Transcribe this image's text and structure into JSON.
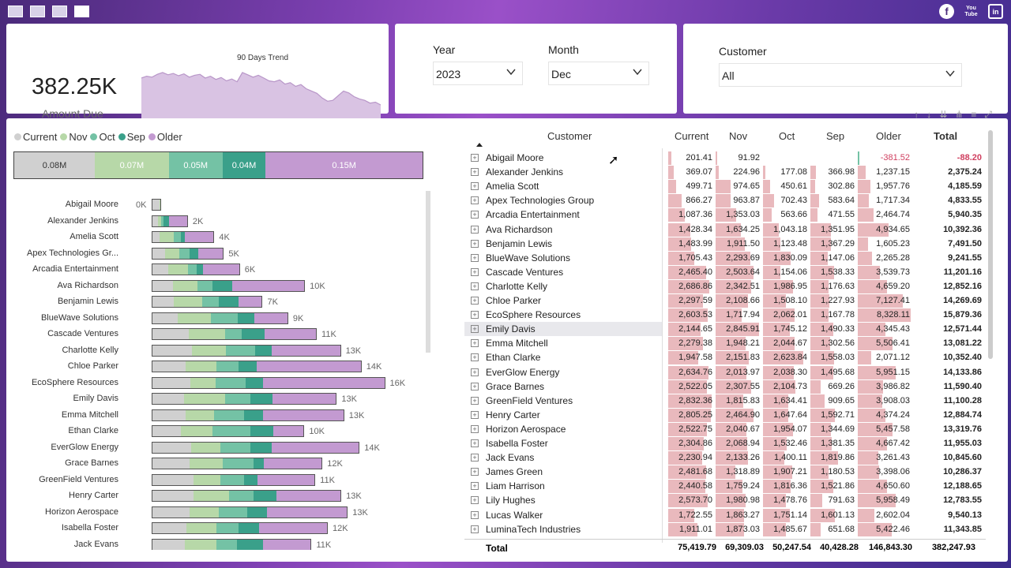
{
  "colors": {
    "current": "#d0d0d0",
    "nov": "#b7d8a8",
    "oct": "#74c2a5",
    "sep": "#3aa08a",
    "older": "#c39ad1",
    "cell_fill": "#e9b9bd",
    "negative": "#d04060"
  },
  "nav": {
    "pages": [
      "page-1",
      "page-2",
      "page-3",
      "page-4"
    ],
    "active_page": 3
  },
  "social": {
    "facebook": "f",
    "youtube_top": "You",
    "youtube_bottom": "Tube",
    "linkedin": "in"
  },
  "kpi": {
    "value": "382.25K",
    "label": "Amount Due",
    "trend_title": "90 Days Trend",
    "trend": [
      0.78,
      0.82,
      0.8,
      0.86,
      0.9,
      0.85,
      0.88,
      0.83,
      0.87,
      0.8,
      0.84,
      0.86,
      0.78,
      0.82,
      0.75,
      0.79,
      0.72,
      0.76,
      0.7,
      0.9,
      0.85,
      0.8,
      0.84,
      0.78,
      0.72,
      0.7,
      0.74,
      0.65,
      0.68,
      0.6,
      0.64,
      0.55,
      0.5,
      0.45,
      0.35,
      0.28,
      0.3,
      0.4,
      0.5,
      0.46,
      0.38,
      0.33,
      0.3,
      0.24,
      0.26,
      0.2
    ]
  },
  "slicers": {
    "year": {
      "label": "Year",
      "value": "2023"
    },
    "month": {
      "label": "Month",
      "value": "Dec"
    },
    "customer": {
      "label": "Customer",
      "value": "All"
    }
  },
  "legend": [
    {
      "key": "current",
      "label": "Current"
    },
    {
      "key": "nov",
      "label": "Nov"
    },
    {
      "key": "oct",
      "label": "Oct"
    },
    {
      "key": "sep",
      "label": "Sep"
    },
    {
      "key": "older",
      "label": "Older"
    }
  ],
  "summary_bar": [
    {
      "key": "current",
      "label": "0.08M",
      "value": 75419.79
    },
    {
      "key": "nov",
      "label": "0.07M",
      "value": 69309.03
    },
    {
      "key": "oct",
      "label": "0.05M",
      "value": 50247.54
    },
    {
      "key": "sep",
      "label": "0.04M",
      "value": 40428.28
    },
    {
      "key": "older",
      "label": "0.15M",
      "value": 146843.3
    }
  ],
  "bar_rows": [
    {
      "name": "Abigail Moore",
      "total_label": "0K",
      "values": [
        201.41,
        91.92,
        0,
        0,
        0
      ]
    },
    {
      "name": "Alexander Jenkins",
      "total_label": "2K",
      "values": [
        369.07,
        224.96,
        177.08,
        366.98,
        1237.15
      ]
    },
    {
      "name": "Amelia Scott",
      "total_label": "4K",
      "values": [
        499.71,
        974.65,
        450.61,
        302.86,
        1957.76
      ]
    },
    {
      "name": "Apex Technologies Gr...",
      "total_label": "5K",
      "values": [
        866.27,
        963.87,
        702.43,
        583.64,
        1717.34
      ]
    },
    {
      "name": "Arcadia Entertainment",
      "total_label": "6K",
      "values": [
        1087.36,
        1353.03,
        563.66,
        471.55,
        2464.74
      ]
    },
    {
      "name": "Ava Richardson",
      "total_label": "10K",
      "values": [
        1428.34,
        1634.25,
        1043.18,
        1351.95,
        4934.65
      ]
    },
    {
      "name": "Benjamin Lewis",
      "total_label": "7K",
      "values": [
        1483.99,
        1911.5,
        1123.48,
        1367.29,
        1605.23
      ]
    },
    {
      "name": "BlueWave Solutions",
      "total_label": "9K",
      "values": [
        1705.43,
        2293.69,
        1830.09,
        1147.06,
        2265.28
      ]
    },
    {
      "name": "Cascade Ventures",
      "total_label": "11K",
      "values": [
        2465.4,
        2503.64,
        1154.06,
        1538.33,
        3539.73
      ]
    },
    {
      "name": "Charlotte Kelly",
      "total_label": "13K",
      "values": [
        2686.86,
        2342.51,
        1986.95,
        1176.63,
        4659.2
      ]
    },
    {
      "name": "Chloe Parker",
      "total_label": "14K",
      "values": [
        2297.59,
        2108.66,
        1508.1,
        1227.93,
        7127.41
      ]
    },
    {
      "name": "EcoSphere Resources",
      "total_label": "16K",
      "values": [
        2603.53,
        1717.94,
        2062.01,
        1167.78,
        8328.11
      ]
    },
    {
      "name": "Emily Davis",
      "total_label": "13K",
      "values": [
        2144.65,
        2845.91,
        1745.12,
        1490.33,
        4345.43
      ]
    },
    {
      "name": "Emma Mitchell",
      "total_label": "13K",
      "values": [
        2279.38,
        1948.21,
        2044.67,
        1302.56,
        5506.41
      ]
    },
    {
      "name": "Ethan Clarke",
      "total_label": "10K",
      "values": [
        1947.58,
        2151.83,
        2623.84,
        1558.03,
        2071.12
      ]
    },
    {
      "name": "EverGlow Energy",
      "total_label": "14K",
      "values": [
        2634.76,
        2013.97,
        2038.3,
        1495.68,
        5951.15
      ]
    },
    {
      "name": "Grace Barnes",
      "total_label": "12K",
      "values": [
        2522.05,
        2307.55,
        2104.73,
        669.26,
        3986.82
      ]
    },
    {
      "name": "GreenField Ventures",
      "total_label": "11K",
      "values": [
        2832.36,
        1815.83,
        1634.41,
        909.65,
        3908.03
      ]
    },
    {
      "name": "Henry Carter",
      "total_label": "13K",
      "values": [
        2805.25,
        2464.9,
        1647.64,
        1592.71,
        4374.24
      ]
    },
    {
      "name": "Horizon Aerospace",
      "total_label": "13K",
      "values": [
        2522.75,
        2040.67,
        1954.07,
        1344.69,
        5457.58
      ]
    },
    {
      "name": "Isabella Foster",
      "total_label": "12K",
      "values": [
        2304.86,
        2068.94,
        1532.46,
        1381.35,
        4667.42
      ]
    },
    {
      "name": "Jack Evans",
      "total_label": "11K",
      "values": [
        2230.94,
        2133.26,
        1400.11,
        1819.86,
        3261.43
      ]
    }
  ],
  "matrix": {
    "headers": {
      "customer": "Customer",
      "current": "Current",
      "nov": "Nov",
      "oct": "Oct",
      "sep": "Sep",
      "older": "Older",
      "total": "Total"
    },
    "rows": [
      {
        "name": "Abigail Moore",
        "current": "201.41",
        "nov": "91.92",
        "oct": "",
        "sep": "",
        "older": "-381.52",
        "total": "-88.20",
        "v": [
          201.41,
          91.92,
          0,
          0,
          -381.52
        ]
      },
      {
        "name": "Alexander Jenkins",
        "current": "369.07",
        "nov": "224.96",
        "oct": "177.08",
        "sep": "366.98",
        "older": "1,237.15",
        "total": "2,375.24",
        "v": [
          369.07,
          224.96,
          177.08,
          366.98,
          1237.15
        ]
      },
      {
        "name": "Amelia Scott",
        "current": "499.71",
        "nov": "974.65",
        "oct": "450.61",
        "sep": "302.86",
        "older": "1,957.76",
        "total": "4,185.59",
        "v": [
          499.71,
          974.65,
          450.61,
          302.86,
          1957.76
        ]
      },
      {
        "name": "Apex Technologies Group",
        "current": "866.27",
        "nov": "963.87",
        "oct": "702.43",
        "sep": "583.64",
        "older": "1,717.34",
        "total": "4,833.55",
        "v": [
          866.27,
          963.87,
          702.43,
          583.64,
          1717.34
        ]
      },
      {
        "name": "Arcadia Entertainment",
        "current": "1,087.36",
        "nov": "1,353.03",
        "oct": "563.66",
        "sep": "471.55",
        "older": "2,464.74",
        "total": "5,940.35",
        "v": [
          1087.36,
          1353.03,
          563.66,
          471.55,
          2464.74
        ]
      },
      {
        "name": "Ava Richardson",
        "current": "1,428.34",
        "nov": "1,634.25",
        "oct": "1,043.18",
        "sep": "1,351.95",
        "older": "4,934.65",
        "total": "10,392.36",
        "v": [
          1428.34,
          1634.25,
          1043.18,
          1351.95,
          4934.65
        ]
      },
      {
        "name": "Benjamin Lewis",
        "current": "1,483.99",
        "nov": "1,911.50",
        "oct": "1,123.48",
        "sep": "1,367.29",
        "older": "1,605.23",
        "total": "7,491.50",
        "v": [
          1483.99,
          1911.5,
          1123.48,
          1367.29,
          1605.23
        ]
      },
      {
        "name": "BlueWave Solutions",
        "current": "1,705.43",
        "nov": "2,293.69",
        "oct": "1,830.09",
        "sep": "1,147.06",
        "older": "2,265.28",
        "total": "9,241.55",
        "v": [
          1705.43,
          2293.69,
          1830.09,
          1147.06,
          2265.28
        ]
      },
      {
        "name": "Cascade Ventures",
        "current": "2,465.40",
        "nov": "2,503.64",
        "oct": "1,154.06",
        "sep": "1,538.33",
        "older": "3,539.73",
        "total": "11,201.16",
        "v": [
          2465.4,
          2503.64,
          1154.06,
          1538.33,
          3539.73
        ]
      },
      {
        "name": "Charlotte Kelly",
        "current": "2,686.86",
        "nov": "2,342.51",
        "oct": "1,986.95",
        "sep": "1,176.63",
        "older": "4,659.20",
        "total": "12,852.16",
        "v": [
          2686.86,
          2342.51,
          1986.95,
          1176.63,
          4659.2
        ]
      },
      {
        "name": "Chloe Parker",
        "current": "2,297.59",
        "nov": "2,108.66",
        "oct": "1,508.10",
        "sep": "1,227.93",
        "older": "7,127.41",
        "total": "14,269.69",
        "v": [
          2297.59,
          2108.66,
          1508.1,
          1227.93,
          7127.41
        ]
      },
      {
        "name": "EcoSphere Resources",
        "current": "2,603.53",
        "nov": "1,717.94",
        "oct": "2,062.01",
        "sep": "1,167.78",
        "older": "8,328.11",
        "total": "15,879.36",
        "v": [
          2603.53,
          1717.94,
          2062.01,
          1167.78,
          8328.11
        ]
      },
      {
        "name": "Emily Davis",
        "current": "2,144.65",
        "nov": "2,845.91",
        "oct": "1,745.12",
        "sep": "1,490.33",
        "older": "4,345.43",
        "total": "12,571.44",
        "v": [
          2144.65,
          2845.91,
          1745.12,
          1490.33,
          4345.43
        ],
        "highlight": true
      },
      {
        "name": "Emma Mitchell",
        "current": "2,279.38",
        "nov": "1,948.21",
        "oct": "2,044.67",
        "sep": "1,302.56",
        "older": "5,506.41",
        "total": "13,081.22",
        "v": [
          2279.38,
          1948.21,
          2044.67,
          1302.56,
          5506.41
        ]
      },
      {
        "name": "Ethan Clarke",
        "current": "1,947.58",
        "nov": "2,151.83",
        "oct": "2,623.84",
        "sep": "1,558.03",
        "older": "2,071.12",
        "total": "10,352.40",
        "v": [
          1947.58,
          2151.83,
          2623.84,
          1558.03,
          2071.12
        ]
      },
      {
        "name": "EverGlow Energy",
        "current": "2,634.76",
        "nov": "2,013.97",
        "oct": "2,038.30",
        "sep": "1,495.68",
        "older": "5,951.15",
        "total": "14,133.86",
        "v": [
          2634.76,
          2013.97,
          2038.3,
          1495.68,
          5951.15
        ]
      },
      {
        "name": "Grace Barnes",
        "current": "2,522.05",
        "nov": "2,307.55",
        "oct": "2,104.73",
        "sep": "669.26",
        "older": "3,986.82",
        "total": "11,590.40",
        "v": [
          2522.05,
          2307.55,
          2104.73,
          669.26,
          3986.82
        ]
      },
      {
        "name": "GreenField Ventures",
        "current": "2,832.36",
        "nov": "1,815.83",
        "oct": "1,634.41",
        "sep": "909.65",
        "older": "3,908.03",
        "total": "11,100.28",
        "v": [
          2832.36,
          1815.83,
          1634.41,
          909.65,
          3908.03
        ]
      },
      {
        "name": "Henry Carter",
        "current": "2,805.25",
        "nov": "2,464.90",
        "oct": "1,647.64",
        "sep": "1,592.71",
        "older": "4,374.24",
        "total": "12,884.74",
        "v": [
          2805.25,
          2464.9,
          1647.64,
          1592.71,
          4374.24
        ]
      },
      {
        "name": "Horizon Aerospace",
        "current": "2,522.75",
        "nov": "2,040.67",
        "oct": "1,954.07",
        "sep": "1,344.69",
        "older": "5,457.58",
        "total": "13,319.76",
        "v": [
          2522.75,
          2040.67,
          1954.07,
          1344.69,
          5457.58
        ]
      },
      {
        "name": "Isabella Foster",
        "current": "2,304.86",
        "nov": "2,068.94",
        "oct": "1,532.46",
        "sep": "1,381.35",
        "older": "4,667.42",
        "total": "11,955.03",
        "v": [
          2304.86,
          2068.94,
          1532.46,
          1381.35,
          4667.42
        ]
      },
      {
        "name": "Jack Evans",
        "current": "2,230.94",
        "nov": "2,133.26",
        "oct": "1,400.11",
        "sep": "1,819.86",
        "older": "3,261.43",
        "total": "10,845.60",
        "v": [
          2230.94,
          2133.26,
          1400.11,
          1819.86,
          3261.43
        ]
      },
      {
        "name": "James Green",
        "current": "2,481.68",
        "nov": "1,318.89",
        "oct": "1,907.21",
        "sep": "1,180.53",
        "older": "3,398.06",
        "total": "10,286.37",
        "v": [
          2481.68,
          1318.89,
          1907.21,
          1180.53,
          3398.06
        ]
      },
      {
        "name": "Liam Harrison",
        "current": "2,440.58",
        "nov": "1,759.24",
        "oct": "1,816.36",
        "sep": "1,521.86",
        "older": "4,650.60",
        "total": "12,188.65",
        "v": [
          2440.58,
          1759.24,
          1816.36,
          1521.86,
          4650.6
        ]
      },
      {
        "name": "Lily Hughes",
        "current": "2,573.70",
        "nov": "1,980.98",
        "oct": "1,478.76",
        "sep": "791.63",
        "older": "5,958.49",
        "total": "12,783.55",
        "v": [
          2573.7,
          1980.98,
          1478.76,
          791.63,
          5958.49
        ]
      },
      {
        "name": "Lucas Walker",
        "current": "1,722.55",
        "nov": "1,863.27",
        "oct": "1,751.14",
        "sep": "1,601.13",
        "older": "2,602.04",
        "total": "9,540.13",
        "v": [
          1722.55,
          1863.27,
          1751.14,
          1601.13,
          2602.04
        ]
      },
      {
        "name": "LuminaTech Industries",
        "current": "1,911.01",
        "nov": "1,873.03",
        "oct": "1,485.67",
        "sep": "651.68",
        "older": "5,422.46",
        "total": "11,343.85",
        "v": [
          1911.01,
          1873.03,
          1485.67,
          651.68,
          5422.46
        ]
      }
    ],
    "totals": {
      "label": "Total",
      "current": "75,419.79",
      "nov": "69,309.03",
      "oct": "50,247.54",
      "sep": "40,428.28",
      "older": "146,843.30",
      "total": "382,247.93"
    }
  }
}
